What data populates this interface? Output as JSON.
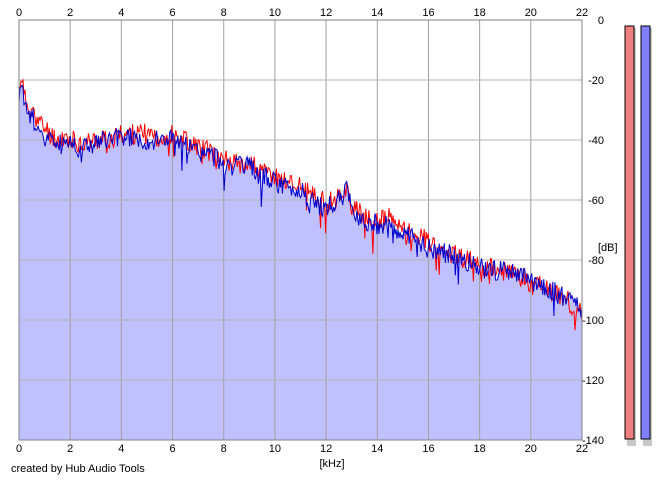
{
  "credit": "created by Hub Audio Tools",
  "chart_data": {
    "type": "area",
    "title": "",
    "xlabel": "[kHz]",
    "ylabel": "[dB]",
    "xlim": [
      0,
      22
    ],
    "ylim": [
      -140,
      0
    ],
    "x_ticks": [
      0,
      2,
      4,
      6,
      8,
      10,
      12,
      14,
      16,
      18,
      20,
      22
    ],
    "y_ticks": [
      0,
      -20,
      -40,
      -60,
      -80,
      -100,
      -120,
      -140
    ],
    "y_tick_labels": [
      "0",
      "-20",
      "-40",
      "-60",
      "-80",
      "-100",
      "-120",
      "-140"
    ],
    "grid": true,
    "x": [
      0,
      0.1,
      0.2,
      0.35,
      0.5,
      0.75,
      1,
      1.25,
      1.5,
      1.75,
      2,
      2.5,
      3,
      3.5,
      4,
      4.5,
      5,
      5.5,
      6,
      6.5,
      7,
      7.5,
      8,
      8.5,
      9,
      9.5,
      10,
      10.5,
      11,
      11.5,
      12,
      12.5,
      12.8,
      13,
      13.5,
      14,
      14.5,
      15,
      15.5,
      16,
      16.5,
      17,
      17.5,
      18,
      18.5,
      19,
      19.5,
      20,
      20.5,
      21,
      21.5,
      22
    ],
    "series": [
      {
        "color": "#ff0000",
        "values": [
          -24,
          -17,
          -26,
          -28,
          -30,
          -34,
          -36,
          -38,
          -40,
          -39,
          -40,
          -41,
          -40,
          -40,
          -38,
          -38,
          -38,
          -39,
          -38,
          -40,
          -42,
          -44,
          -46,
          -48,
          -47,
          -51,
          -52,
          -54,
          -55,
          -59,
          -61,
          -59,
          -56,
          -62,
          -66,
          -67,
          -66,
          -70,
          -71,
          -74,
          -76,
          -78,
          -80,
          -82,
          -83,
          -84,
          -85,
          -88,
          -89,
          -91,
          -94,
          -97
        ]
      },
      {
        "color": "#0000cc",
        "values": [
          -25,
          -18,
          -28,
          -30,
          -32,
          -36,
          -38,
          -40,
          -41,
          -40,
          -41,
          -42,
          -41,
          -40,
          -39,
          -39,
          -40,
          -40,
          -39,
          -42,
          -44,
          -45,
          -47,
          -49,
          -49,
          -52,
          -54,
          -56,
          -57,
          -61,
          -63,
          -60,
          -57,
          -63,
          -67,
          -68,
          -68,
          -72,
          -73,
          -76,
          -77,
          -79,
          -81,
          -82,
          -83,
          -84,
          -85,
          -87,
          -89,
          -91,
          -93,
          -96
        ]
      }
    ],
    "fill_color": "#c0c0ff",
    "meters": [
      {
        "color": "#f08080"
      },
      {
        "color": "#8080ff"
      }
    ]
  }
}
